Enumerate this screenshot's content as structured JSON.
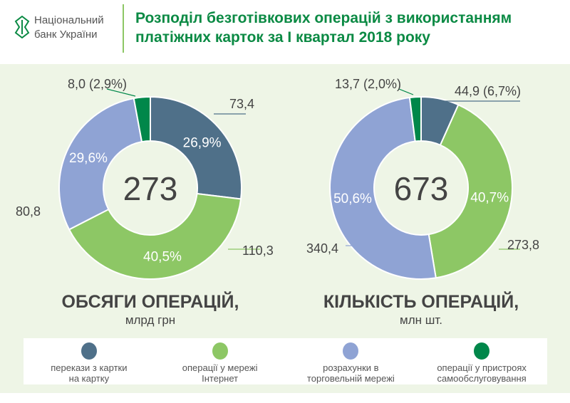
{
  "header": {
    "logo_line1": "Національний",
    "logo_line2": "банк України",
    "title_line1": "Розподіл безготівкових операцій з використанням",
    "title_line2": "платіжних карток за І квартал 2018 року"
  },
  "colors": {
    "transfers": "#4f7089",
    "internet": "#8dc765",
    "retail": "#8fa3d4",
    "selfservice": "#00874a",
    "title": "#0b8a44"
  },
  "chart_data": [
    {
      "type": "pie",
      "title": "ОБСЯГИ ОПЕРАЦІЙ,",
      "subtitle": "млрд грн",
      "total": "273",
      "categories": [
        "перекази з картки на картку",
        "операції у мережі Інтернет",
        "розрахунки в торговельній мережі",
        "операції у пристроях самообслуговування"
      ],
      "values": [
        73.4,
        110.3,
        80.8,
        8.0
      ],
      "percents": [
        26.9,
        40.5,
        29.6,
        2.9
      ],
      "pct_labels": [
        "26,9%",
        "40,5%",
        "29,6%",
        ""
      ],
      "value_labels": [
        "73,4",
        "110,3",
        "80,8",
        "8,0 (2,9%)"
      ]
    },
    {
      "type": "pie",
      "title": "КІЛЬКІСТЬ ОПЕРАЦІЙ,",
      "subtitle": "млн шт.",
      "total": "673",
      "categories": [
        "перекази з картки на картку",
        "операції у мережі Інтернет",
        "розрахунки в торговельній мережі",
        "операції у пристроях самообслуговування"
      ],
      "values": [
        44.9,
        273.8,
        340.4,
        13.7
      ],
      "percents": [
        6.7,
        40.7,
        50.6,
        2.0
      ],
      "pct_labels": [
        "",
        "40,7%",
        "50,6%",
        ""
      ],
      "value_labels": [
        "44,9 (6,7%)",
        "273,8",
        "340,4",
        "13,7 (2,0%)"
      ]
    }
  ],
  "legend": [
    {
      "line1": "перекази з картки",
      "line2": "на картку"
    },
    {
      "line1": "операції у мережі",
      "line2": "Інтернет"
    },
    {
      "line1": "розрахунки в",
      "line2": "торговельній мережі"
    },
    {
      "line1": "операції у пристроях",
      "line2": "самообслуговування"
    }
  ]
}
